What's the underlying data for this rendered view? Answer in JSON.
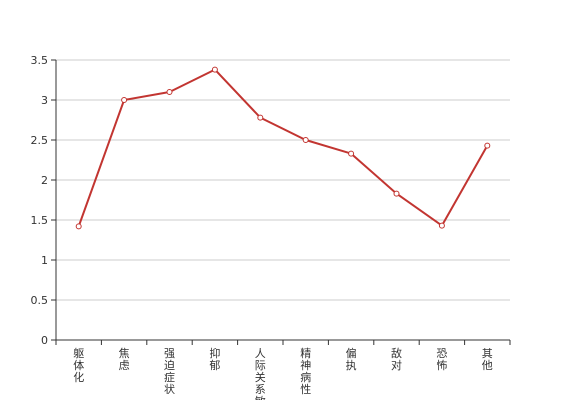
{
  "chart_data": {
    "type": "line",
    "title": "",
    "xlabel": "",
    "ylabel": "",
    "categories": [
      "躯体化",
      "焦虑",
      "强迫症状",
      "抑郁",
      "人际关系敏感",
      "精神病性",
      "偏执",
      "敌对",
      "恐怖",
      "其他"
    ],
    "series": [
      {
        "values": [
          1.42,
          3.0,
          3.1,
          3.38,
          2.78,
          2.5,
          2.33,
          1.83,
          1.43,
          2.43
        ]
      }
    ],
    "ylim": [
      0,
      3.5
    ],
    "yticks": [
      "0",
      "0.5",
      "1",
      "1.5",
      "2",
      "2.5",
      "3",
      "3.5"
    ],
    "grid": true,
    "legend": "none"
  },
  "colors": {
    "line": "#c23531",
    "marker_fill": "#ffffff",
    "grid": "#cccccc",
    "axis": "#333333",
    "text": "#333333"
  }
}
